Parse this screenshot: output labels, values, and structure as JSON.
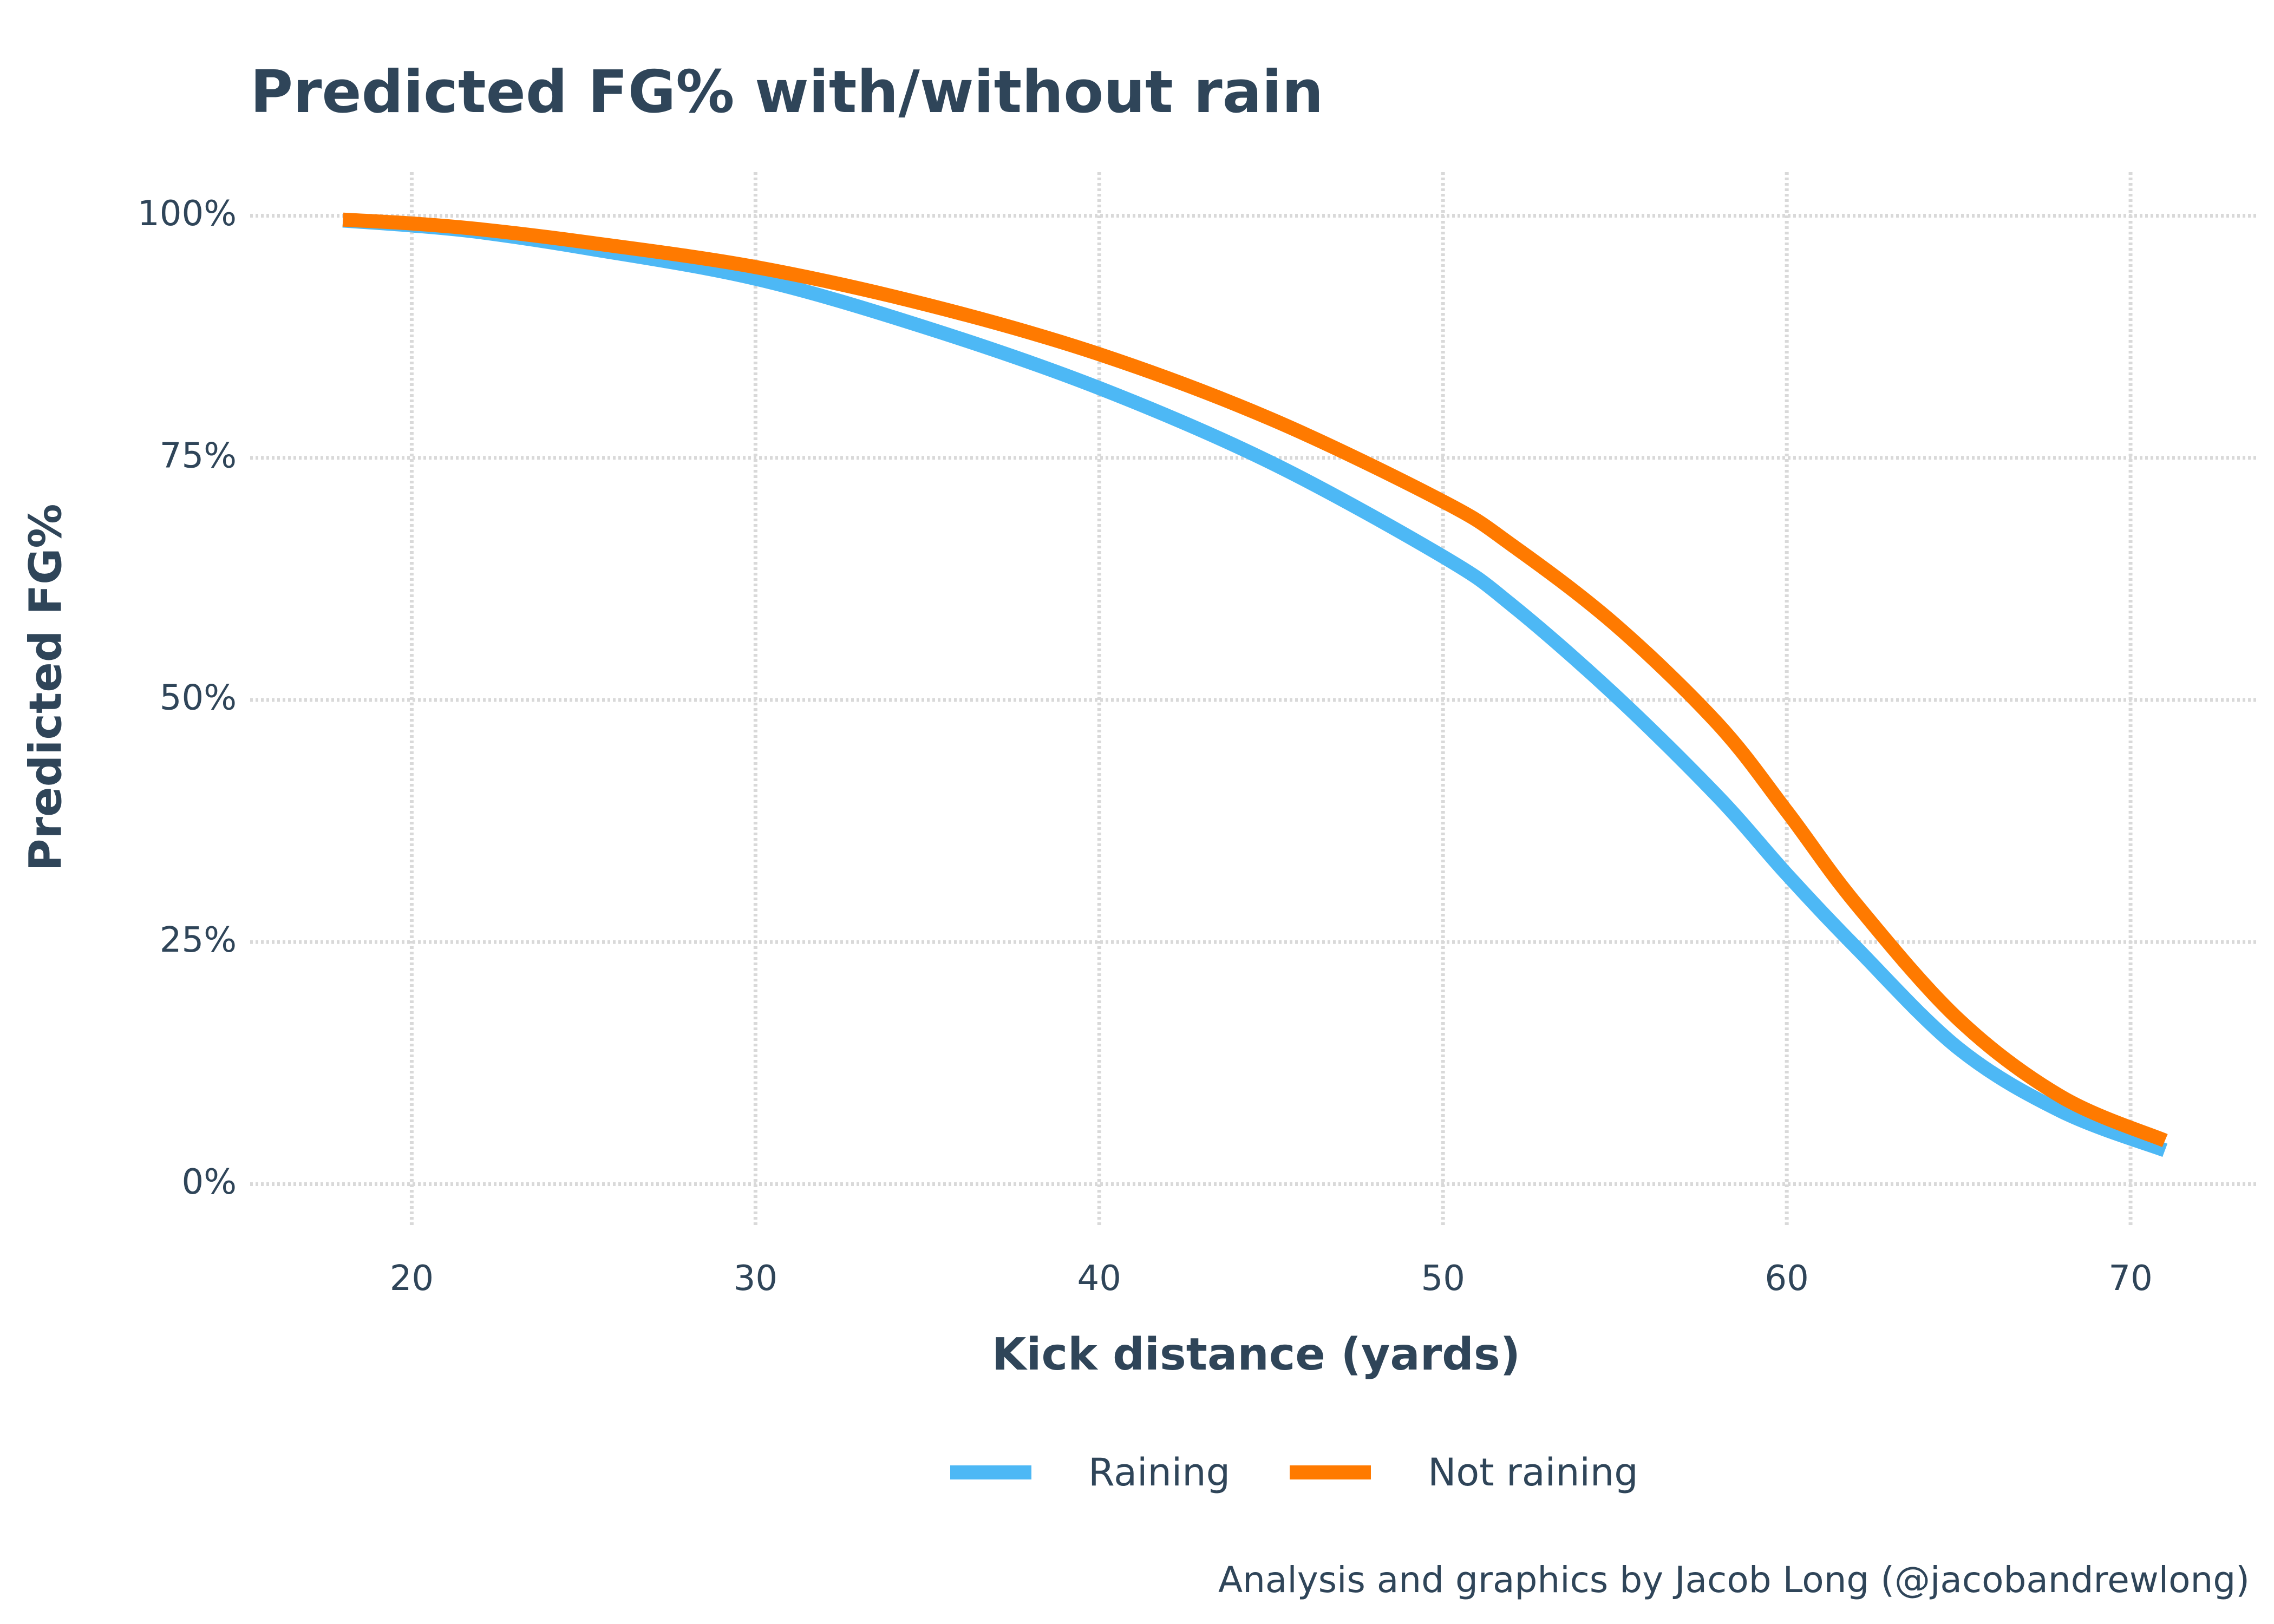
{
  "chart_data": {
    "type": "line",
    "title": "Predicted FG% with/without rain",
    "xlabel": "Kick distance (yards)",
    "ylabel": "Predicted FG%",
    "xlim": [
      15.3,
      73.7
    ],
    "ylim": [
      -0.045,
      1.045
    ],
    "x_ticks": [
      20,
      30,
      40,
      50,
      60,
      70
    ],
    "x_tick_labels": [
      "20",
      "30",
      "40",
      "50",
      "60",
      "70"
    ],
    "y_ticks": [
      0,
      0.25,
      0.5,
      0.75,
      1.0
    ],
    "y_tick_labels": [
      "0%",
      "25%",
      "50%",
      "75%",
      "100%"
    ],
    "grid": true,
    "legend_position": "bottom",
    "caption": "Analysis and graphics by Jacob Long (@jacobandrewlong)",
    "x": [
      18,
      20,
      22,
      25,
      30,
      35,
      40,
      45,
      50,
      52,
      55,
      58,
      60,
      62,
      65,
      68,
      71
    ],
    "series": [
      {
        "name": "Raining",
        "color": "#4db8f5",
        "values": [
          0.995,
          0.99,
          0.983,
          0.967,
          0.935,
          0.884,
          0.822,
          0.745,
          0.648,
          0.598,
          0.505,
          0.4,
          0.32,
          0.245,
          0.14,
          0.075,
          0.035
        ]
      },
      {
        "name": "Not raining",
        "color": "#ff7a00",
        "values": [
          0.996,
          0.992,
          0.986,
          0.973,
          0.947,
          0.908,
          0.857,
          0.79,
          0.705,
          0.66,
          0.578,
          0.475,
          0.385,
          0.29,
          0.17,
          0.09,
          0.045
        ]
      }
    ]
  }
}
